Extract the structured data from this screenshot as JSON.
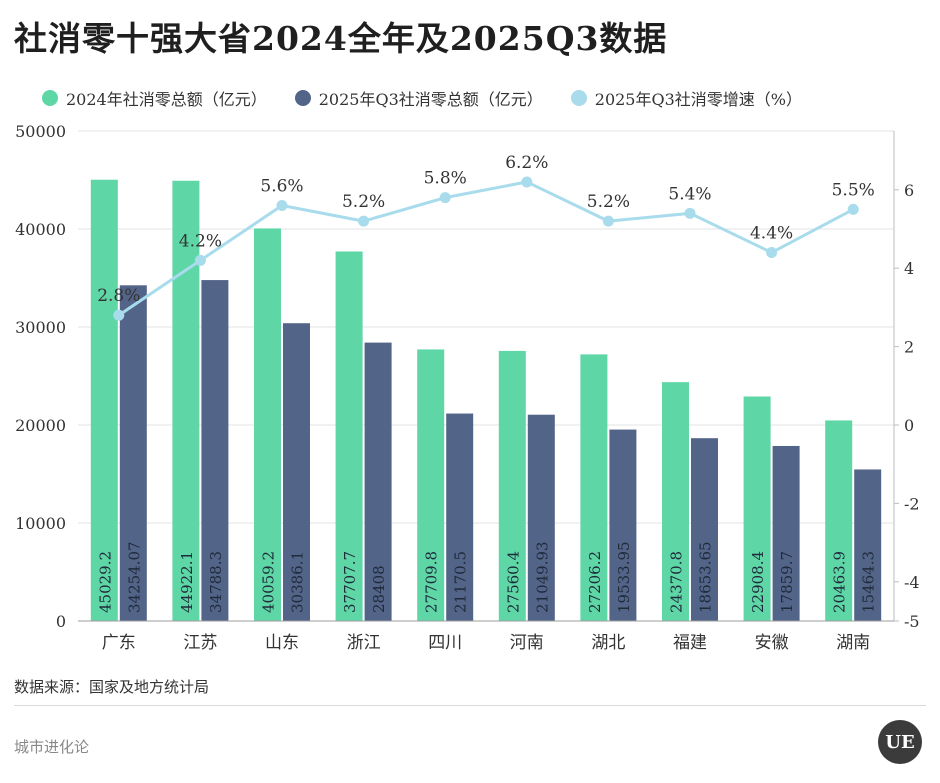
{
  "title": "社消零十强大省2024全年及2025Q3数据",
  "legend": {
    "items": [
      {
        "label": "2024年社消零总额（亿元）",
        "color": "#5ed6a6"
      },
      {
        "label": "2025年Q3社消零总额（亿元）",
        "color": "#536489"
      },
      {
        "label": "2025年Q3社消零增速（%）",
        "color": "#a8dcec"
      }
    ]
  },
  "source": "数据来源：国家及地方统计局",
  "footer": "城市进化论",
  "logo": "UE",
  "chart_data": {
    "type": "bar",
    "categories": [
      "广东",
      "江苏",
      "山东",
      "浙江",
      "四川",
      "河南",
      "湖北",
      "福建",
      "安徽",
      "湖南"
    ],
    "series": [
      {
        "name": "2024年社消零总额（亿元）",
        "values": [
          45029.2,
          44922.1,
          40059.2,
          37707.7,
          27709.8,
          27560.4,
          27206.2,
          24370.8,
          22908.4,
          20463.9
        ],
        "labels": [
          "45029.2",
          "44922.1",
          "40059.2",
          "37707.7",
          "27709.8",
          "27560.4",
          "27206.2",
          "24370.8",
          "22908.4",
          "20463.9"
        ],
        "color": "#5ed6a6",
        "axis": "left"
      },
      {
        "name": "2025年Q3社消零总额（亿元）",
        "values": [
          34254.07,
          34788.3,
          30386.1,
          28408,
          21170.5,
          21049.93,
          19533.95,
          18653.65,
          17859.7,
          15464.3
        ],
        "labels": [
          "34254.07",
          "34788.3",
          "30386.1",
          "28408",
          "21170.5",
          "21049.93",
          "19533.95",
          "18653.65",
          "17859.7",
          "15464.3"
        ],
        "color": "#536489",
        "axis": "left"
      },
      {
        "name": "2025年Q3社消零增速（%）",
        "type": "line",
        "values": [
          2.8,
          4.2,
          5.6,
          5.2,
          5.8,
          6.2,
          5.2,
          5.4,
          4.4,
          5.5
        ],
        "labels": [
          "2.8%",
          "4.2%",
          "5.6%",
          "5.2%",
          "5.8%",
          "6.2%",
          "5.2%",
          "5.4%",
          "4.4%",
          "5.5%"
        ],
        "color": "#a8dcec",
        "axis": "right"
      }
    ],
    "ylim": [
      0,
      50000
    ],
    "yticks": [
      0,
      10000,
      20000,
      30000,
      40000,
      50000
    ],
    "y2lim": [
      -5,
      7.5
    ],
    "y2ticks": [
      -5,
      -4,
      -2,
      0,
      2,
      4,
      6
    ],
    "grid": true,
    "legend_position": "top"
  }
}
